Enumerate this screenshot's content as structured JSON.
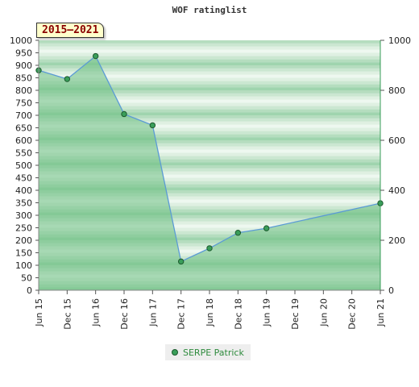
{
  "chart_data": {
    "type": "area",
    "title": "WOF ratinglist",
    "period_label": "2015–2021",
    "x_ticks": [
      "Jun 15",
      "Dec 15",
      "Jun 16",
      "Dec 16",
      "Jun 17",
      "Dec 17",
      "Jun 18",
      "Dec 18",
      "Jun 19",
      "Dec 19",
      "Jun 20",
      "Dec 20",
      "Jun 21"
    ],
    "y_left": {
      "min": 0,
      "max": 1000,
      "step": 50
    },
    "y_right": {
      "min": 0,
      "max": 1000,
      "ticks": [
        0,
        200,
        400,
        600,
        800,
        1000
      ]
    },
    "legend_position": "bottom-center",
    "series": [
      {
        "name": "SERPE Patrick",
        "color": "#3a9e5a",
        "line_color": "#5b9bd5",
        "points": [
          {
            "x": "Jun 15",
            "y": 880
          },
          {
            "x": "Dec 15",
            "y": 845
          },
          {
            "x": "Jun 16",
            "y": 937
          },
          {
            "x": "Dec 16",
            "y": 705
          },
          {
            "x": "Jun 17",
            "y": 660
          },
          {
            "x": "Dec 17",
            "y": 115
          },
          {
            "x": "Jun 18",
            "y": 168
          },
          {
            "x": "Dec 18",
            "y": 230
          },
          {
            "x": "Jun 19",
            "y": 248
          },
          {
            "x": "Jun 21",
            "y": 348
          }
        ]
      }
    ]
  }
}
